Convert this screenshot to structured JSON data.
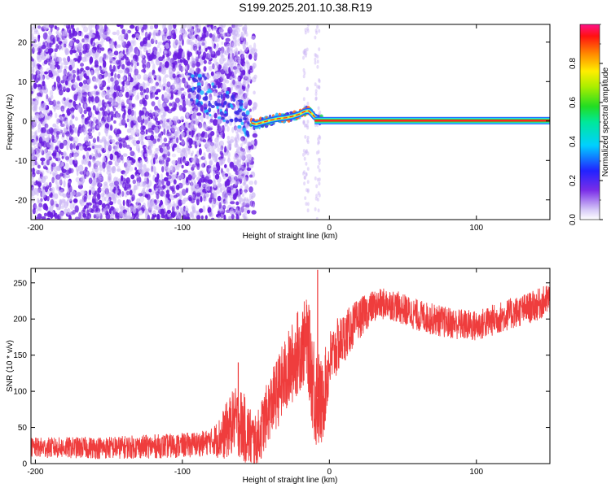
{
  "title": "S199.2025.201.10.38.R19",
  "colors": {
    "speckle": "#6a1de0",
    "speckle_light": "#c9b3f5",
    "trace": "#ee3333",
    "band_outer": "#2255ff",
    "band_mid": "#22ddee",
    "band_center": "#ff2222"
  },
  "chart_data": [
    {
      "type": "heatmap",
      "xlabel": "Height of straight line (km)",
      "ylabel": "Frequency (Hz)",
      "xlim": [
        -203,
        150
      ],
      "ylim": [
        -25,
        24.5
      ],
      "xticks": [
        -200,
        -100,
        0,
        100
      ],
      "yticks": [
        -20,
        -10,
        0,
        10,
        20
      ],
      "colorbar": {
        "label": "Normalized spectral amplitude",
        "range": [
          0,
          1
        ],
        "ticks": [
          "0.0",
          "0.2",
          "0.4",
          "0.6",
          "0.8"
        ],
        "tick_values": [
          0,
          0.2,
          0.4,
          0.6,
          0.8
        ]
      },
      "ridge": {
        "x": [
          -95,
          -85,
          -78,
          -72,
          -66,
          -60,
          -56,
          -53,
          -50,
          -45,
          -40,
          -35,
          -30,
          -25,
          -20,
          -17,
          -14,
          -12,
          -10,
          -8,
          -5,
          0,
          50,
          100,
          150
        ],
        "y": [
          10,
          7,
          5,
          3.5,
          2,
          1,
          0.5,
          -0.5,
          -0.8,
          -0.3,
          0.2,
          0.6,
          0.8,
          1.2,
          1.8,
          2.4,
          2.6,
          1.9,
          1.0,
          0.5,
          0.2,
          0.1,
          0.1,
          0.1,
          0.1
        ]
      },
      "speckle_regions": [
        {
          "x": [
            -203,
            -90
          ],
          "density": "high"
        },
        {
          "x": [
            -90,
            -60
          ],
          "density": "medium"
        },
        {
          "x": [
            -60,
            -50
          ],
          "density": "low"
        }
      ]
    },
    {
      "type": "line",
      "xlabel": "Height of straight line (km)",
      "ylabel": "SNR (10 * v/v)",
      "xlim": [
        -203,
        150
      ],
      "ylim": [
        0,
        270
      ],
      "xticks": [
        -200,
        -100,
        0,
        100
      ],
      "yticks": [
        0,
        50,
        100,
        150,
        200,
        250
      ],
      "trend": {
        "x": [
          -203,
          -150,
          -100,
          -85,
          -75,
          -70,
          -65,
          -60,
          -55,
          -50,
          -45,
          -40,
          -35,
          -30,
          -25,
          -20,
          -15,
          -10,
          -5,
          0,
          5,
          10,
          20,
          30,
          40,
          60,
          80,
          100,
          120,
          140,
          150
        ],
        "y": [
          22,
          22,
          25,
          28,
          35,
          45,
          60,
          55,
          40,
          25,
          55,
          80,
          100,
          120,
          140,
          160,
          170,
          100,
          80,
          140,
          160,
          175,
          200,
          218,
          222,
          205,
          195,
          190,
          205,
          218,
          228
        ]
      },
      "noise_amplitude": {
        "x": [
          -203,
          -80,
          -70,
          -60,
          -50,
          -40,
          -30,
          -20,
          -15,
          -10,
          -5,
          0,
          10,
          30,
          150
        ],
        "y": [
          14,
          18,
          40,
          50,
          40,
          45,
          55,
          60,
          60,
          80,
          60,
          45,
          35,
          22,
          22
        ]
      },
      "spikes": [
        {
          "x": -8,
          "y": 268
        },
        {
          "x": -18,
          "y": 200
        },
        {
          "x": -62,
          "y": 140
        }
      ]
    }
  ]
}
